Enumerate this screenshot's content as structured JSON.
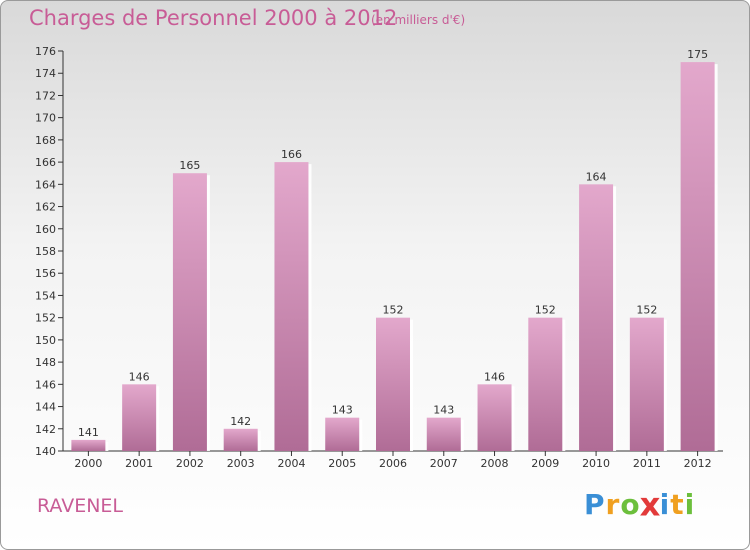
{
  "title": "Charges de Personnel 2000 à 2012",
  "subtitle": "(en milliers d'€)",
  "commune": "RAVENEL",
  "logo": {
    "letters": [
      "P",
      "r",
      "o",
      "x",
      "i",
      "t",
      "i"
    ],
    "colors": [
      "#3a8fd6",
      "#f0a020",
      "#6cbf3c",
      "#e23a3a",
      "#3a8fd6",
      "#f0a020",
      "#6cbf3c"
    ]
  },
  "colors": {
    "bar_light": "#e3a8cc",
    "bar_dark": "#b06c96",
    "text": "#c85c96",
    "axis_text": "#333333"
  },
  "chart_data": {
    "type": "bar",
    "title": "Charges de Personnel 2000 à 2012",
    "subtitle": "(en milliers d'€)",
    "categories": [
      "2000",
      "2001",
      "2002",
      "2003",
      "2004",
      "2005",
      "2006",
      "2007",
      "2008",
      "2009",
      "2010",
      "2011",
      "2012"
    ],
    "values": [
      141,
      146,
      165,
      142,
      166,
      143,
      152,
      143,
      146,
      152,
      164,
      152,
      175
    ],
    "ylim": [
      140,
      176
    ],
    "ytick_step": 2,
    "grid": false,
    "legend": "none"
  }
}
